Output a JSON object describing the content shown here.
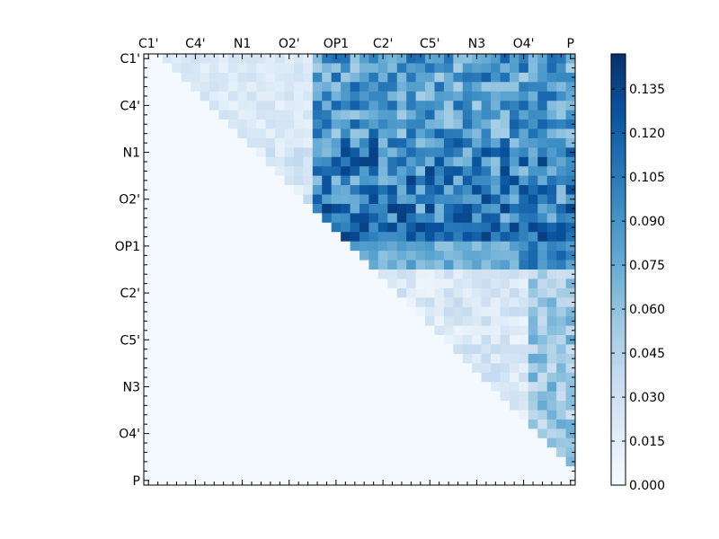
{
  "chart_data": {
    "type": "heatmap",
    "title": "",
    "xlabel": "",
    "ylabel": "",
    "n": 46,
    "tick_labels": [
      "C1'",
      "C4'",
      "N1",
      "O2'",
      "OP1",
      "C2'",
      "C5'",
      "N3",
      "O4'",
      "P"
    ],
    "tick_positions": [
      0,
      5,
      10,
      15,
      20,
      25,
      30,
      35,
      40,
      45
    ],
    "colormap": "Blues",
    "colorbar": {
      "min": 0.0,
      "max": 0.147,
      "ticks": [
        "0.000",
        "0.015",
        "0.030",
        "0.045",
        "0.060",
        "0.075",
        "0.090",
        "0.105",
        "0.120",
        "0.135"
      ]
    },
    "structure": "upper-triangular",
    "notes": "Values above diagonal in the upper-left block (rows 0-23) are mostly 0.005-0.14; below-diagonal cells are zero."
  },
  "colors": {
    "cmap_stops": [
      "#f7fbff",
      "#deebf7",
      "#c6dbef",
      "#9ecae1",
      "#6baed6",
      "#4292c6",
      "#2171b5",
      "#08519c",
      "#08306b"
    ],
    "axis": "#000000"
  }
}
